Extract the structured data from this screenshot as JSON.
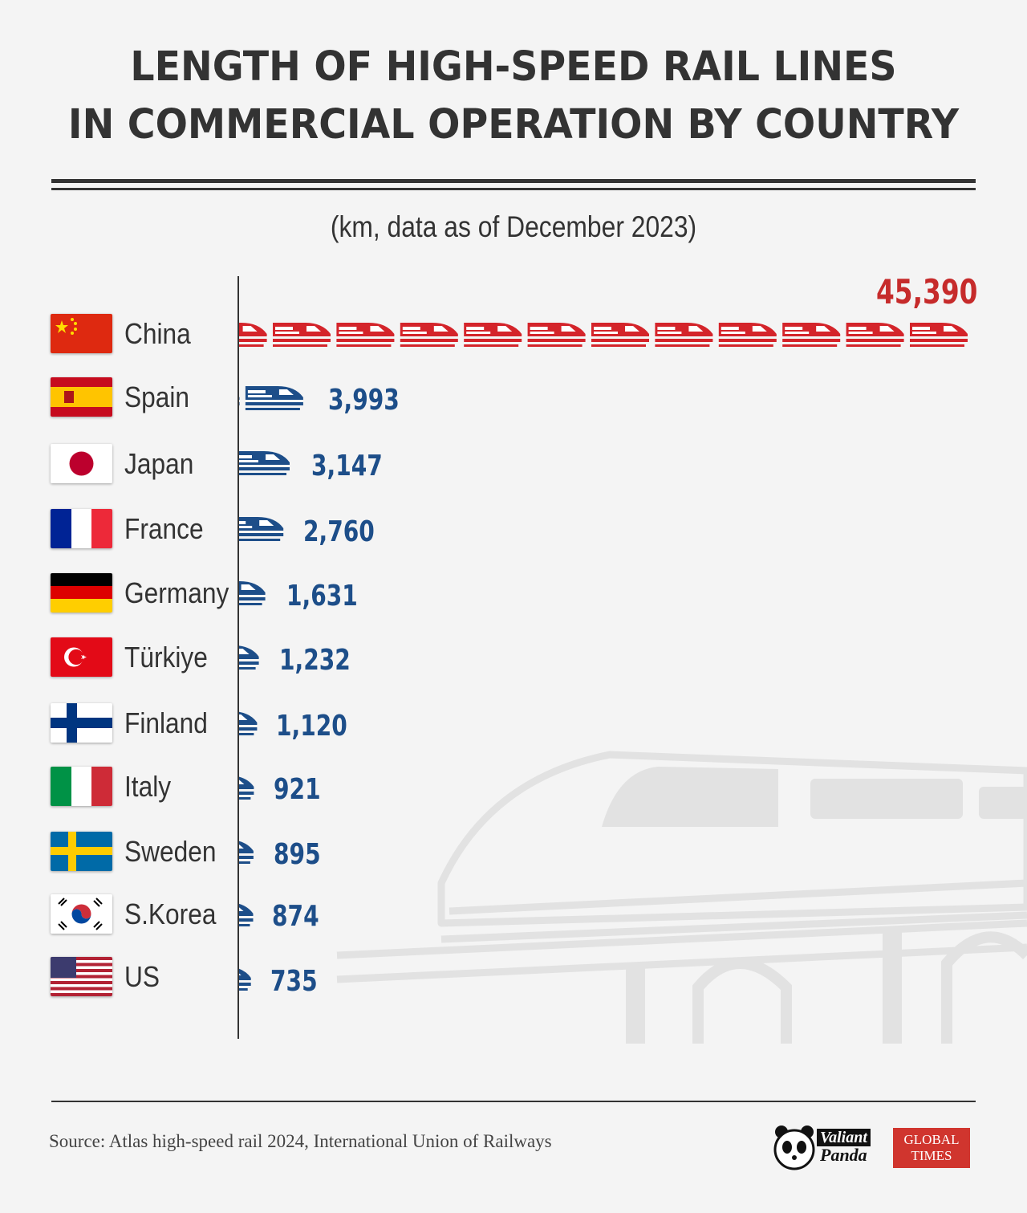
{
  "title_line1": "LENGTH OF HIGH-SPEED RAIL LINES",
  "title_line2": "IN COMMERCIAL OPERATION BY COUNTRY",
  "subtitle": "(km, data as of December 2023)",
  "source": "Source: Atlas high-speed rail 2024, International Union of Railways",
  "logos": {
    "panda_line1": "Valiant",
    "panda_line2": "Panda",
    "gt_line1": "GLOBAL",
    "gt_line2": "TIMES"
  },
  "colors": {
    "china": "#d4242a",
    "others": "#1d4e89",
    "text": "#333333"
  },
  "icons": [
    "high-speed-train-icon"
  ],
  "chart_data": {
    "type": "bar",
    "orientation": "horizontal",
    "title": "LENGTH OF HIGH-SPEED RAIL LINES IN COMMERCIAL OPERATION BY COUNTRY",
    "subtitle": "(km, data as of December 2023)",
    "unit": "km",
    "mark": "repeated train icons",
    "categories": [
      "China",
      "Spain",
      "Japan",
      "France",
      "Germany",
      "Türkiye",
      "Finland",
      "Italy",
      "Sweden",
      "S.Korea",
      "US"
    ],
    "values": [
      45390,
      3993,
      3147,
      2760,
      1631,
      1232,
      1120,
      921,
      895,
      874,
      735
    ],
    "labels": [
      "45,390",
      "3,993",
      "3,147",
      "2,760",
      "1,631",
      "1,232",
      "1,120",
      "921",
      "895",
      "874",
      "735"
    ],
    "xlim": [
      0,
      45390
    ],
    "grid": false,
    "legend": "none"
  }
}
